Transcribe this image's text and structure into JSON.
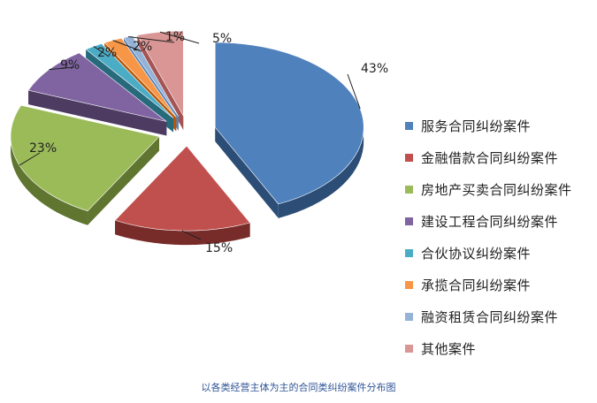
{
  "chart_data": {
    "type": "pie",
    "style": "3d-exploded",
    "categories": [
      "服务合同纠纷案件",
      "金融借款合同纠纷案件",
      "房地产买卖合同纠纷案件",
      "建设工程合同纠纷案件",
      "合伙协议纠纷案件",
      "承揽合同纠纷案件",
      "融资租赁合同纠纷案件",
      "其他案件"
    ],
    "values": [
      43,
      15,
      23,
      9,
      2,
      2,
      1,
      5
    ],
    "data_labels": [
      "43%",
      "15%",
      "23%",
      "9%",
      "2%",
      "2%",
      "1%",
      "5%"
    ],
    "colors": [
      "#4f81bd",
      "#c0504d",
      "#9bbb59",
      "#8064a2",
      "#4bacc6",
      "#f79646",
      "#95b3d7",
      "#d99694"
    ],
    "side_colors": [
      "#2c4d75",
      "#772c2a",
      "#5f7530",
      "#4d3b62",
      "#276a7c",
      "#b65708",
      "#5882b6",
      "#a45553"
    ],
    "legend_position": "right",
    "title": ""
  },
  "caption": "以各类经营主体为主的合同类纠纷案件分布图"
}
